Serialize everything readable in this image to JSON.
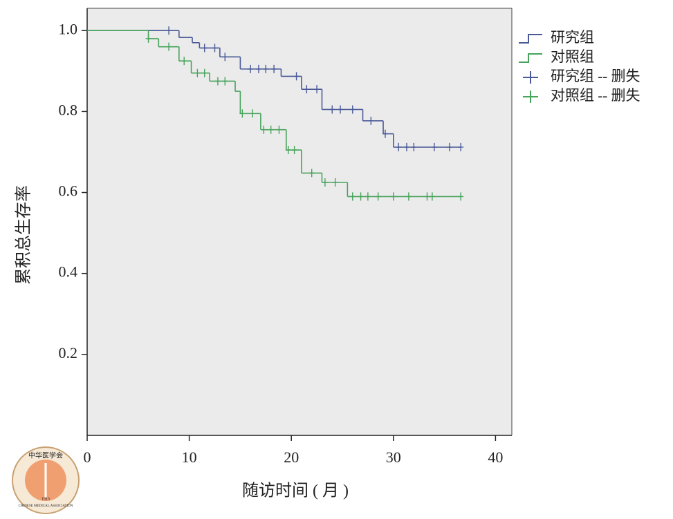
{
  "chart_data": {
    "type": "kaplan-meier",
    "xlabel": "随访时间 ( 月 )",
    "ylabel": "累积总生存率",
    "xlim": [
      0,
      41.6
    ],
    "ylim": [
      0,
      1.055
    ],
    "xticks": [
      0,
      10,
      20,
      30,
      40
    ],
    "yticks": [
      {
        "value": 1,
        "label": "1.0"
      },
      0.8,
      0.6,
      0.4,
      0.2
    ],
    "background": "#ebebeb",
    "legend": "right",
    "series": [
      {
        "name": "研究组",
        "style": "step",
        "color": "#4a5a98",
        "x": [
          0,
          9,
          10.3,
          11,
          13,
          15,
          19,
          21,
          23,
          27,
          29,
          30,
          36.6
        ],
        "values": [
          1,
          0.983,
          0.97,
          0.957,
          0.935,
          0.905,
          0.887,
          0.855,
          0.805,
          0.777,
          0.745,
          0.712,
          0.712
        ]
      },
      {
        "name": "对照组",
        "style": "step",
        "color": "#46a35a",
        "x": [
          0,
          6,
          7,
          9,
          10.2,
          12,
          14.5,
          15,
          17,
          19.5,
          21,
          23,
          25.5,
          36.6
        ],
        "values": [
          1,
          0.98,
          0.96,
          0.925,
          0.895,
          0.875,
          0.85,
          0.795,
          0.755,
          0.705,
          0.648,
          0.625,
          0.59,
          0.59
        ]
      },
      {
        "name": "研究组 -- 删失",
        "style": "censor",
        "color": "#4a5a98",
        "x": [
          8,
          11.5,
          12.5,
          13.5,
          16,
          16.8,
          17.5,
          18.3,
          20.5,
          21.5,
          22.5,
          24,
          24.8,
          26,
          27.8,
          29.2,
          30.5,
          31.3,
          32,
          34,
          35.5,
          36.6
        ],
        "values": [
          1,
          0.957,
          0.957,
          0.935,
          0.905,
          0.905,
          0.905,
          0.905,
          0.887,
          0.855,
          0.855,
          0.805,
          0.805,
          0.805,
          0.777,
          0.745,
          0.712,
          0.712,
          0.712,
          0.712,
          0.712,
          0.712
        ]
      },
      {
        "name": "对照组 -- 删失",
        "style": "censor",
        "color": "#46a35a",
        "x": [
          6,
          8,
          9.5,
          10.8,
          11.5,
          12.8,
          13.5,
          15.2,
          16.2,
          17.3,
          18,
          18.8,
          19.7,
          20.3,
          22,
          23.3,
          24.3,
          26,
          26.8,
          27.5,
          28.5,
          30,
          31.5,
          33.3,
          33.8,
          36.6
        ],
        "values": [
          0.98,
          0.96,
          0.925,
          0.895,
          0.895,
          0.875,
          0.875,
          0.795,
          0.795,
          0.755,
          0.755,
          0.755,
          0.705,
          0.705,
          0.648,
          0.625,
          0.625,
          0.59,
          0.59,
          0.59,
          0.59,
          0.59,
          0.59,
          0.59,
          0.59,
          0.59
        ]
      }
    ]
  },
  "logo": {
    "text": "中华医学会",
    "subtitle": "CHINESE MEDICAL ASSOCIATION",
    "year": "1915"
  }
}
